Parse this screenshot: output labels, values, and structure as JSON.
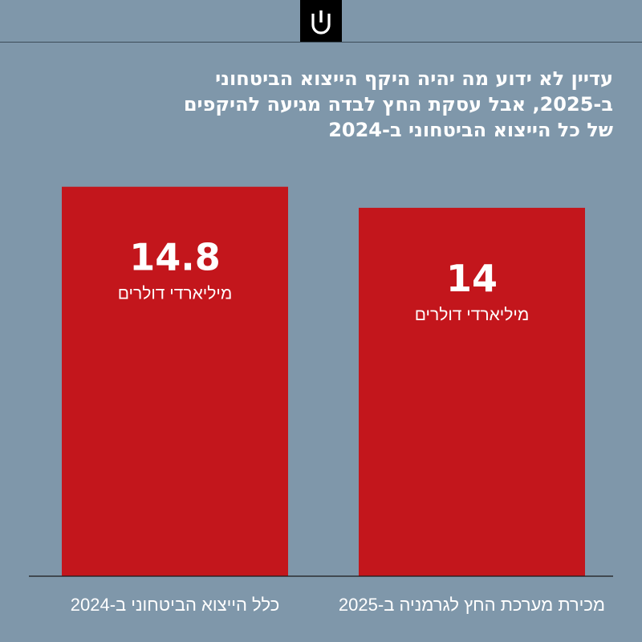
{
  "header": {
    "logo_icon": "publisher-logo-icon"
  },
  "title_lines": [
    "עדיין לא ידוע מה יהיה היקף הייצוא הביטחוני",
    "ב-2025, אבל עסקת החץ לבדה מגיעה להיקפים",
    "של כל הייצוא הביטחוני ב-2024"
  ],
  "chart_data": {
    "type": "bar",
    "title": "עדיין לא ידוע מה יהיה היקף הייצוא הביטחוני ב-2025, אבל עסקת החץ לבדה מגיעה להיקפים של כל הייצוא הביטחוני ב-2024",
    "categories": [
      "כלל הייצוא הביטחוני ב-2024",
      "מכירת מערכת החץ לגרמניה ב-2025"
    ],
    "values": [
      14.8,
      14
    ],
    "value_labels": [
      "14.8",
      "14"
    ],
    "unit": "מיליארדי דולרים",
    "ylim": [
      0,
      15.95
    ],
    "grid": false,
    "legend": "none",
    "colors": {
      "bar": "#c3161c",
      "background": "#7f97aa",
      "text": "#ffffff",
      "baseline": "#1a1a1a"
    }
  }
}
